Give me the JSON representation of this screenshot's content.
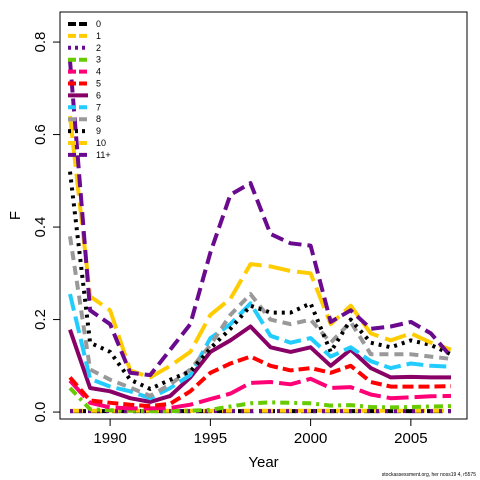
{
  "chart_data": {
    "type": "line",
    "title": "",
    "xlabel": "Year",
    "ylabel": "F",
    "xlim": [
      1987.5,
      2007.8
    ],
    "ylim": [
      -0.015,
      0.865
    ],
    "x_ticks": [
      1990,
      1995,
      2000,
      2005
    ],
    "y_ticks": [
      0.0,
      0.2,
      0.4,
      0.6,
      0.8
    ],
    "x_tick_labels": [
      "1990",
      "1995",
      "2000",
      "2005"
    ],
    "y_tick_labels": [
      "0.0",
      "0.2",
      "0.4",
      "0.6",
      "0.8"
    ],
    "grid": false,
    "legend_position": "top-left",
    "credit": "stockassessment.org, her noss19 4, r5575",
    "x": [
      1988,
      1989,
      1990,
      1991,
      1992,
      1993,
      1994,
      1995,
      1996,
      1997,
      1998,
      1999,
      2000,
      2001,
      2002,
      2003,
      2004,
      2005,
      2006,
      2007
    ],
    "series": [
      {
        "name": "0",
        "color": "#000000",
        "dash": "16,5",
        "values": [
          0.002,
          0.002,
          0.002,
          0.002,
          0.002,
          0.002,
          0.002,
          0.002,
          0.002,
          0.002,
          0.002,
          0.002,
          0.002,
          0.002,
          0.002,
          0.002,
          0.002,
          0.002,
          0.002,
          0.002
        ]
      },
      {
        "name": "1",
        "color": "#FFCC00",
        "dash": "13,6",
        "values": [
          0.003,
          0.003,
          0.003,
          0.003,
          0.003,
          0.003,
          0.003,
          0.003,
          0.003,
          0.003,
          0.003,
          0.003,
          0.003,
          0.003,
          0.003,
          0.003,
          0.003,
          0.003,
          0.003,
          0.003
        ]
      },
      {
        "name": "2",
        "color": "#6A0A8E",
        "dash": "3,6",
        "values": [
          0.002,
          0.002,
          0.002,
          0.002,
          0.002,
          0.002,
          0.002,
          0.002,
          0.002,
          0.002,
          0.002,
          0.002,
          0.002,
          0.002,
          0.002,
          0.002,
          0.002,
          0.002,
          0.002,
          0.002
        ]
      },
      {
        "name": "3",
        "color": "#66CC00",
        "dash": "9,5,3,5",
        "values": [
          0.052,
          0.006,
          0.004,
          0.003,
          0.002,
          0.002,
          0.003,
          0.005,
          0.012,
          0.019,
          0.021,
          0.02,
          0.019,
          0.014,
          0.015,
          0.011,
          0.01,
          0.011,
          0.012,
          0.013
        ]
      },
      {
        "name": "4",
        "color": "#FF0077",
        "dash": "22,6",
        "values": [
          0.068,
          0.02,
          0.01,
          0.008,
          0.008,
          0.009,
          0.016,
          0.028,
          0.04,
          0.063,
          0.065,
          0.06,
          0.072,
          0.052,
          0.054,
          0.038,
          0.03,
          0.032,
          0.034,
          0.035
        ]
      },
      {
        "name": "5",
        "color": "#FF0000",
        "dash": "11,5",
        "values": [
          0.075,
          0.025,
          0.02,
          0.016,
          0.013,
          0.018,
          0.045,
          0.085,
          0.105,
          0.12,
          0.1,
          0.09,
          0.095,
          0.085,
          0.1,
          0.065,
          0.055,
          0.055,
          0.055,
          0.056
        ]
      },
      {
        "name": "6",
        "color": "#880066",
        "dash": "none",
        "values": [
          0.178,
          0.052,
          0.045,
          0.03,
          0.022,
          0.035,
          0.075,
          0.13,
          0.155,
          0.185,
          0.14,
          0.13,
          0.14,
          0.1,
          0.135,
          0.095,
          0.075,
          0.076,
          0.075,
          0.075
        ]
      },
      {
        "name": "7",
        "color": "#22CCFF",
        "dash": "17,6",
        "values": [
          0.255,
          0.072,
          0.055,
          0.045,
          0.03,
          0.052,
          0.08,
          0.16,
          0.19,
          0.235,
          0.165,
          0.15,
          0.16,
          0.12,
          0.14,
          0.11,
          0.095,
          0.105,
          0.1,
          0.098
        ]
      },
      {
        "name": "8",
        "color": "#999999",
        "dash": "9,6",
        "values": [
          0.38,
          0.092,
          0.07,
          0.053,
          0.035,
          0.06,
          0.092,
          0.145,
          0.21,
          0.255,
          0.2,
          0.19,
          0.2,
          0.15,
          0.195,
          0.125,
          0.125,
          0.125,
          0.12,
          0.115
        ]
      },
      {
        "name": "9",
        "color": "#000000",
        "dash": "3,5",
        "values": [
          0.52,
          0.15,
          0.13,
          0.07,
          0.05,
          0.07,
          0.088,
          0.138,
          0.18,
          0.23,
          0.215,
          0.215,
          0.235,
          0.13,
          0.2,
          0.15,
          0.14,
          0.155,
          0.145,
          0.125
        ]
      },
      {
        "name": "10",
        "color": "#FFCC00",
        "dash": "22,7",
        "values": [
          0.64,
          0.25,
          0.22,
          0.09,
          0.075,
          0.1,
          0.13,
          0.21,
          0.245,
          0.32,
          0.315,
          0.305,
          0.3,
          0.19,
          0.23,
          0.17,
          0.155,
          0.17,
          0.15,
          0.135
        ]
      },
      {
        "name": "11+",
        "color": "#6A0A8E",
        "dash": "13,6",
        "values": [
          0.76,
          0.22,
          0.19,
          0.085,
          0.08,
          0.135,
          0.19,
          0.345,
          0.47,
          0.495,
          0.385,
          0.365,
          0.36,
          0.195,
          0.22,
          0.18,
          0.185,
          0.195,
          0.17,
          0.12
        ]
      }
    ]
  }
}
